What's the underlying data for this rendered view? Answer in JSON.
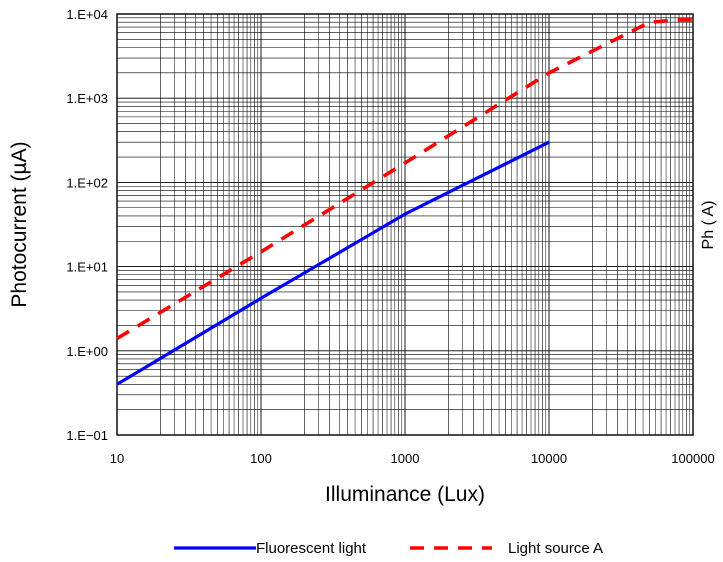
{
  "chart_data": {
    "type": "line",
    "title": "",
    "xlabel": "Illuminance (Lux)",
    "ylabel": "Photocurrent (µA)",
    "x_scale": "log",
    "y_scale": "log",
    "xlim": [
      10,
      100000
    ],
    "ylim": [
      0.1,
      10000
    ],
    "x_tick_labels": [
      "10",
      "100",
      "1000",
      "10000",
      "100000"
    ],
    "y_tick_labels": [
      "1.E−01",
      "1.E+00",
      "1.E+01",
      "1.E+02",
      "1.E+03",
      "1.E+04"
    ],
    "grid": true,
    "legend_position": "bottom",
    "clipped_right_text": "Ph    (  A)",
    "series": [
      {
        "name": "Fluorescent light",
        "color": "#0000ff",
        "style": "solid",
        "x": [
          10,
          100,
          1000,
          10000
        ],
        "y": [
          0.4,
          4.2,
          42,
          300
        ]
      },
      {
        "name": "Light source A",
        "color": "#ff0000",
        "style": "dashed",
        "x": [
          10,
          100,
          1000,
          10000,
          50000,
          80000,
          100000
        ],
        "y": [
          1.4,
          15,
          170,
          2000,
          8000,
          8500,
          8500
        ]
      }
    ]
  }
}
